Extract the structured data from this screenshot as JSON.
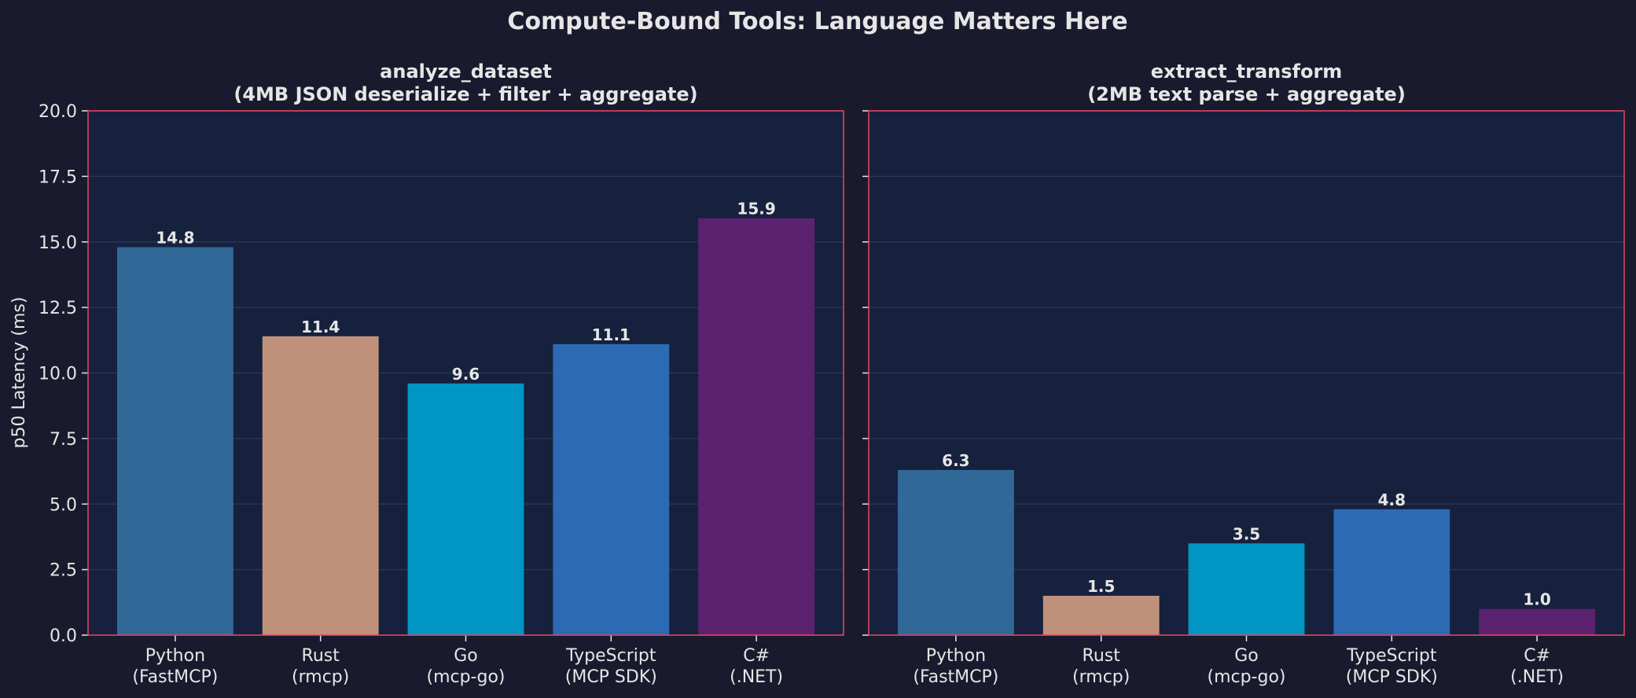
{
  "chart_data": {
    "suptitle": "Compute-Bound Tools: Language Matters Here",
    "ylabel": "p50 Latency (ms)",
    "ylim": [
      0,
      20
    ],
    "yticks": [
      "0.0",
      "2.5",
      "5.0",
      "7.5",
      "10.0",
      "12.5",
      "15.0",
      "17.5",
      "20.0"
    ],
    "grid": "horizontal",
    "colors": {
      "background": "#1a1a2e",
      "plot_background": "#16213e",
      "spine": "#e94560",
      "text": "#e6e6e6",
      "grid": "#2a3555",
      "bars": [
        "#306998",
        "#c0917a",
        "#0095c2",
        "#2d6ab4",
        "#5b2270"
      ]
    },
    "panels": [
      {
        "type": "bar",
        "title_line1": "analyze_dataset",
        "title_line2": "(4MB JSON deserialize + filter + aggregate)",
        "categories": [
          {
            "line1": "Python",
            "line2": "(FastMCP)"
          },
          {
            "line1": "Rust",
            "line2": "(rmcp)"
          },
          {
            "line1": "Go",
            "line2": "(mcp-go)"
          },
          {
            "line1": "TypeScript",
            "line2": "(MCP SDK)"
          },
          {
            "line1": "C#",
            "line2": "(.NET)"
          }
        ],
        "values": [
          14.8,
          11.4,
          9.6,
          11.1,
          15.9
        ],
        "labels": [
          "14.8",
          "11.4",
          "9.6",
          "11.1",
          "15.9"
        ]
      },
      {
        "type": "bar",
        "title_line1": "extract_transform",
        "title_line2": "(2MB text parse + aggregate)",
        "categories": [
          {
            "line1": "Python",
            "line2": "(FastMCP)"
          },
          {
            "line1": "Rust",
            "line2": "(rmcp)"
          },
          {
            "line1": "Go",
            "line2": "(mcp-go)"
          },
          {
            "line1": "TypeScript",
            "line2": "(MCP SDK)"
          },
          {
            "line1": "C#",
            "line2": "(.NET)"
          }
        ],
        "values": [
          6.3,
          1.5,
          3.5,
          4.8,
          1.0
        ],
        "labels": [
          "6.3",
          "1.5",
          "3.5",
          "4.8",
          "1.0"
        ]
      }
    ]
  }
}
